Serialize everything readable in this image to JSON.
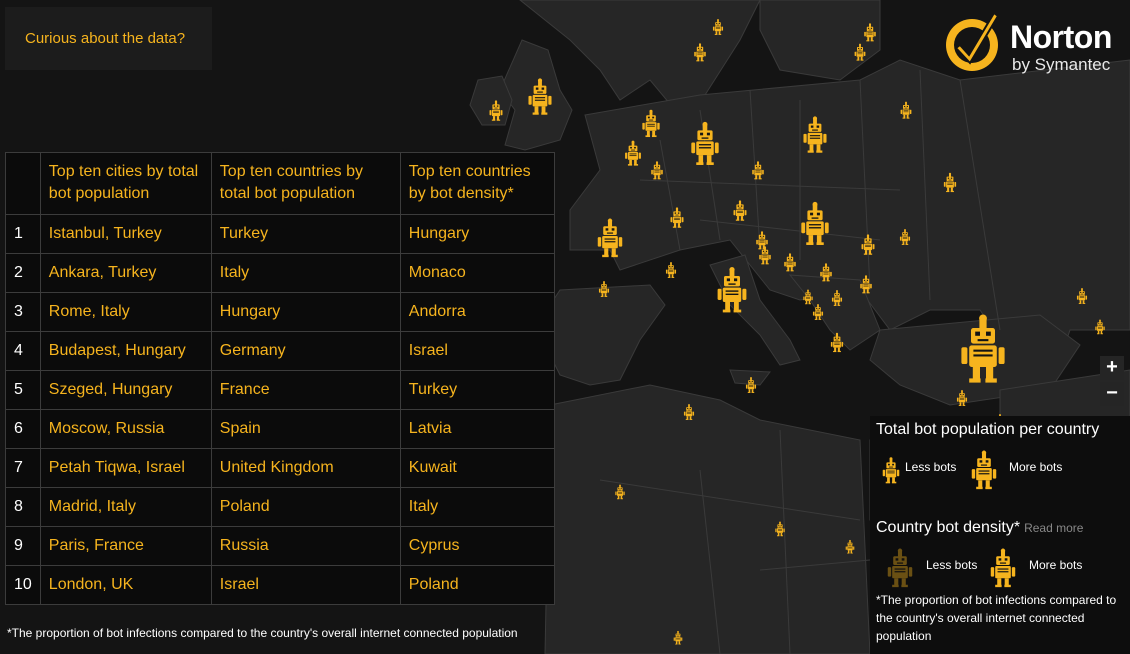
{
  "curious_label": "Curious about the data?",
  "logo": {
    "word": "Norton",
    "sub": "by Symantec"
  },
  "table": {
    "headers": [
      "Top ten cities by total bot population",
      "Top ten countries by total bot population",
      "Top ten countries by bot density*"
    ],
    "rows": [
      [
        "1",
        "Istanbul, Turkey",
        "Turkey",
        "Hungary"
      ],
      [
        "2",
        "Ankara, Turkey",
        "Italy",
        "Monaco"
      ],
      [
        "3",
        "Rome, Italy",
        "Hungary",
        "Andorra"
      ],
      [
        "4",
        "Budapest, Hungary",
        "Germany",
        "Israel"
      ],
      [
        "5",
        "Szeged, Hungary",
        "France",
        "Turkey"
      ],
      [
        "6",
        "Moscow, Russia",
        "Spain",
        "Latvia"
      ],
      [
        "7",
        "Petah Tiqwa, Israel",
        "United Kingdom",
        "Kuwait"
      ],
      [
        "8",
        "Madrid, Italy",
        "Poland",
        "Italy"
      ],
      [
        "9",
        "Paris, France",
        "Russia",
        "Cyprus"
      ],
      [
        "10",
        "London, UK",
        "Israel",
        "Poland"
      ]
    ]
  },
  "footnote": "*The proportion of bot infections compared to the country's overall internet connected population",
  "zoom": {
    "in": "+",
    "out": "−"
  },
  "legend": {
    "total_title": "Total bot population per country",
    "less": "Less bots",
    "more": "More bots",
    "density_title": "Country bot density*",
    "read_more": "Read more",
    "note": "*The proportion of bot infections compared to the country's overall internet connected population"
  },
  "colors": {
    "accent": "#f6b41e",
    "land": "#262626",
    "sea": "#141414",
    "border": "#3a3a3a"
  }
}
